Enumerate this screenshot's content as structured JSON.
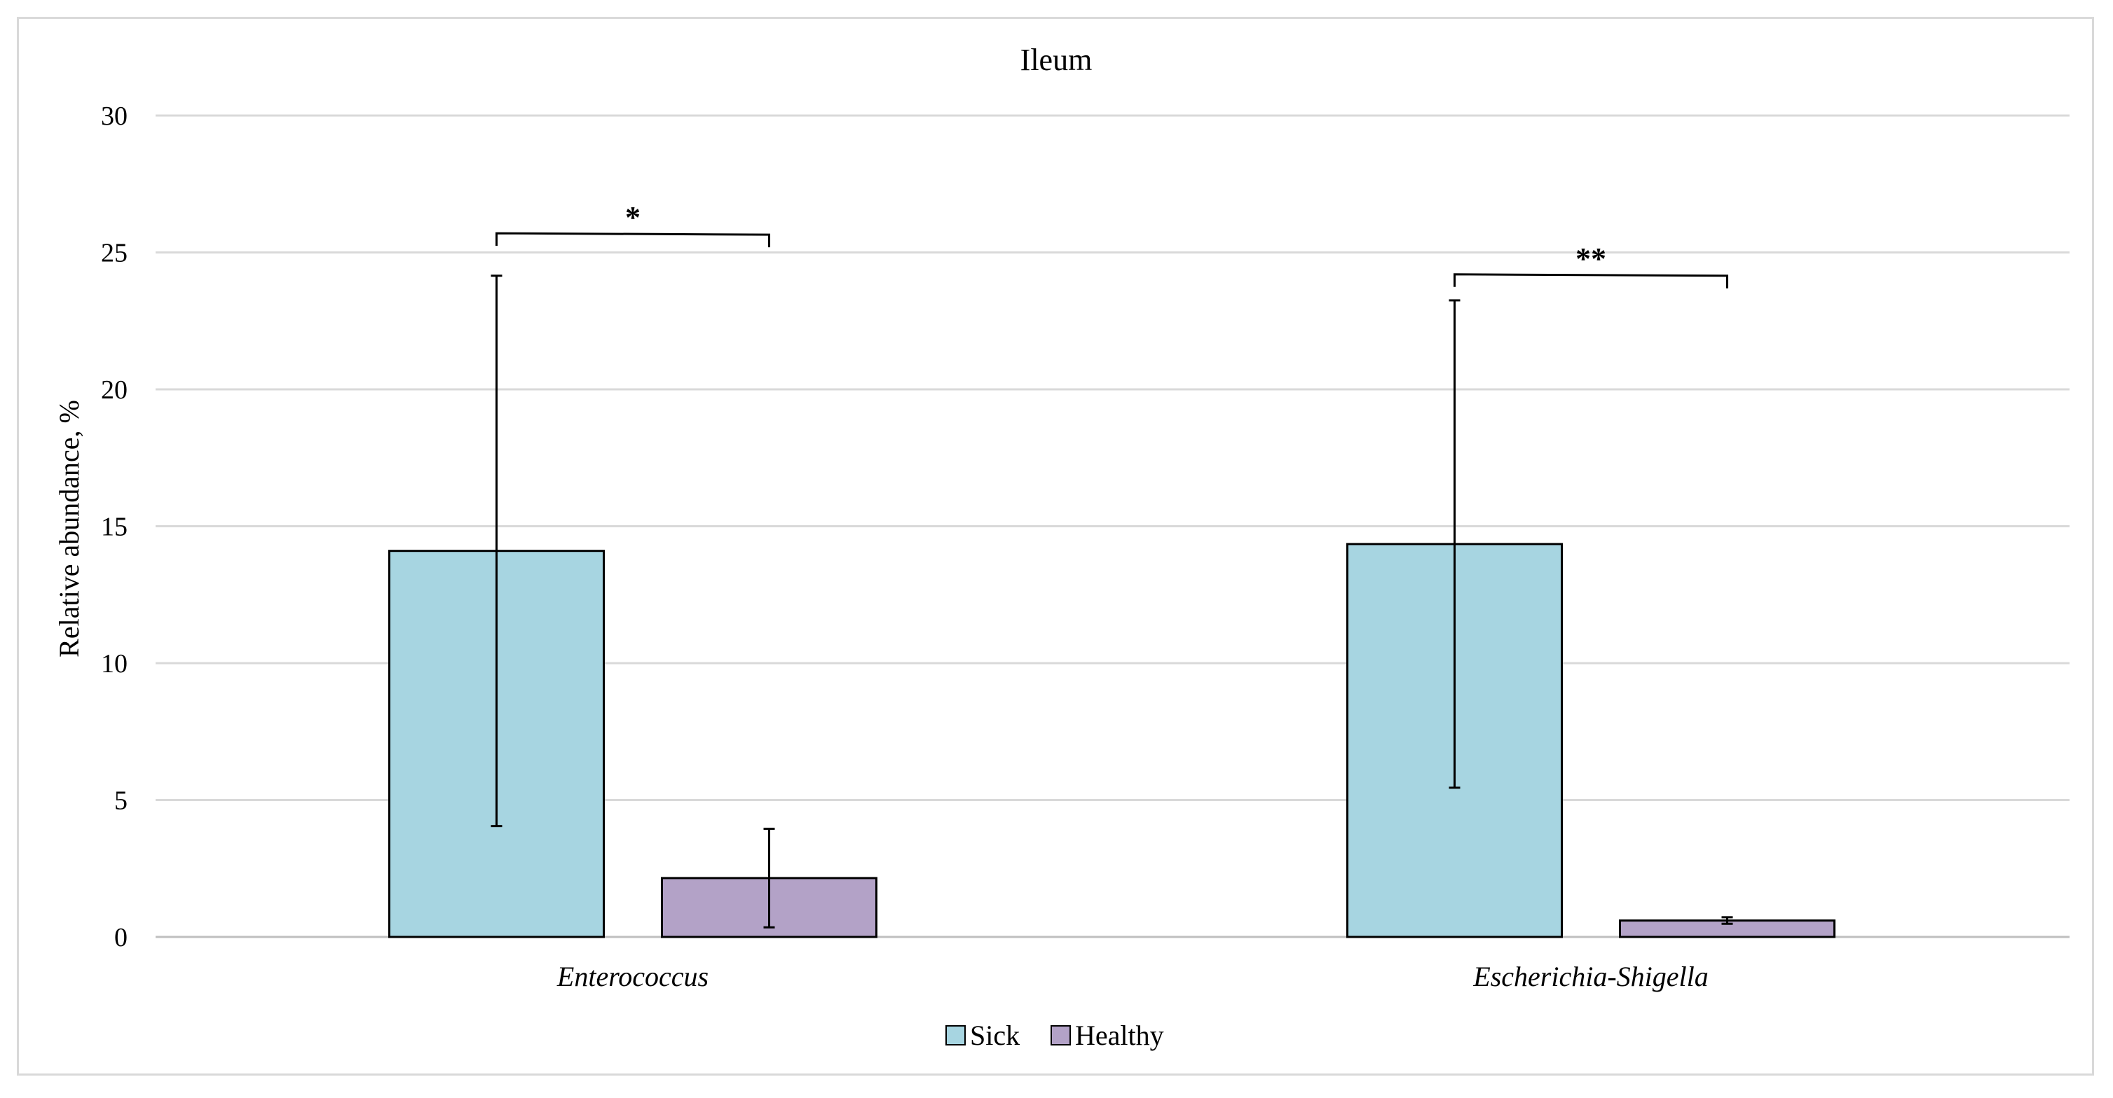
{
  "chart_data": {
    "type": "bar",
    "title": "Ileum",
    "xlabel": "",
    "ylabel": "Relative abundance, %",
    "ylim": [
      0,
      30
    ],
    "yticks": [
      0,
      5,
      10,
      15,
      20,
      25,
      30
    ],
    "grid": true,
    "legend_position": "bottom",
    "categories": [
      "Enterococcus",
      "Escherichia-Shigella"
    ],
    "series": [
      {
        "name": "Sick",
        "color": "#a7d5e1",
        "values": [
          14.1,
          14.35
        ],
        "errors": [
          10.05,
          8.9
        ]
      },
      {
        "name": "Healthy",
        "color": "#b3a2c7",
        "values": [
          2.15,
          0.6
        ],
        "errors": [
          1.8,
          0.12
        ]
      }
    ],
    "annotations": [
      {
        "category": "Enterococcus",
        "label": "*",
        "bracket_value": 25.7
      },
      {
        "category": "Escherichia-Shigella",
        "label": "**",
        "bracket_value": 24.2
      }
    ]
  }
}
